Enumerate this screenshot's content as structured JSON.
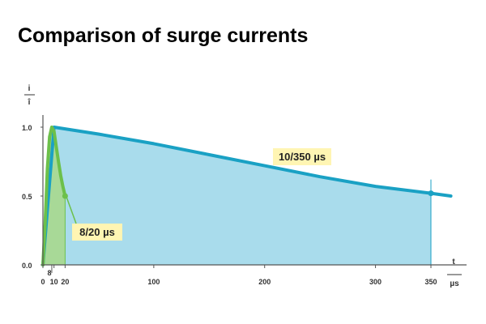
{
  "title": "Comparison of surge currents",
  "chart_data": {
    "type": "area",
    "xlabel": "t",
    "xunit": "µs",
    "ylabel": "i",
    "yunit": "î",
    "xlim": [
      0,
      370
    ],
    "ylim": [
      0,
      1.05
    ],
    "x_ticks": [
      {
        "value": 0,
        "label": "0"
      },
      {
        "value": 10,
        "label": "10"
      },
      {
        "value": 20,
        "label": "20"
      },
      {
        "value": 100,
        "label": "100"
      },
      {
        "value": 200,
        "label": "200"
      },
      {
        "value": 300,
        "label": "300"
      },
      {
        "value": 350,
        "label": "350"
      }
    ],
    "marker_8": {
      "value": 8,
      "label": "8"
    },
    "y_ticks": [
      {
        "value": 0,
        "label": "0.0"
      },
      {
        "value": 0.5,
        "label": "0.5"
      },
      {
        "value": 1.0,
        "label": "1.0"
      }
    ],
    "series": [
      {
        "name": "10/350 µs",
        "color": "#1aa1c4",
        "fill": "#a9dcec",
        "x": [
          0,
          10,
          50,
          100,
          150,
          200,
          250,
          300,
          350,
          368
        ],
        "y": [
          0,
          1.0,
          0.95,
          0.88,
          0.8,
          0.72,
          0.64,
          0.57,
          0.52,
          0.5
        ],
        "marker": [
          350,
          0.52
        ]
      },
      {
        "name": "8/20 µs",
        "color": "#6cc04a",
        "fill": "#a8d888",
        "x": [
          0,
          2,
          4,
          6,
          8,
          10,
          12,
          14,
          16,
          18,
          20
        ],
        "y": [
          0,
          0.3,
          0.7,
          0.93,
          1.0,
          0.97,
          0.86,
          0.75,
          0.65,
          0.57,
          0.5
        ],
        "marker": [
          20,
          0.5
        ]
      }
    ],
    "annotations": [
      {
        "text": "10/350 µs",
        "x": 210,
        "y": 0.72
      },
      {
        "text": "8/20 µs",
        "x": 40,
        "y": 0.24
      }
    ]
  }
}
